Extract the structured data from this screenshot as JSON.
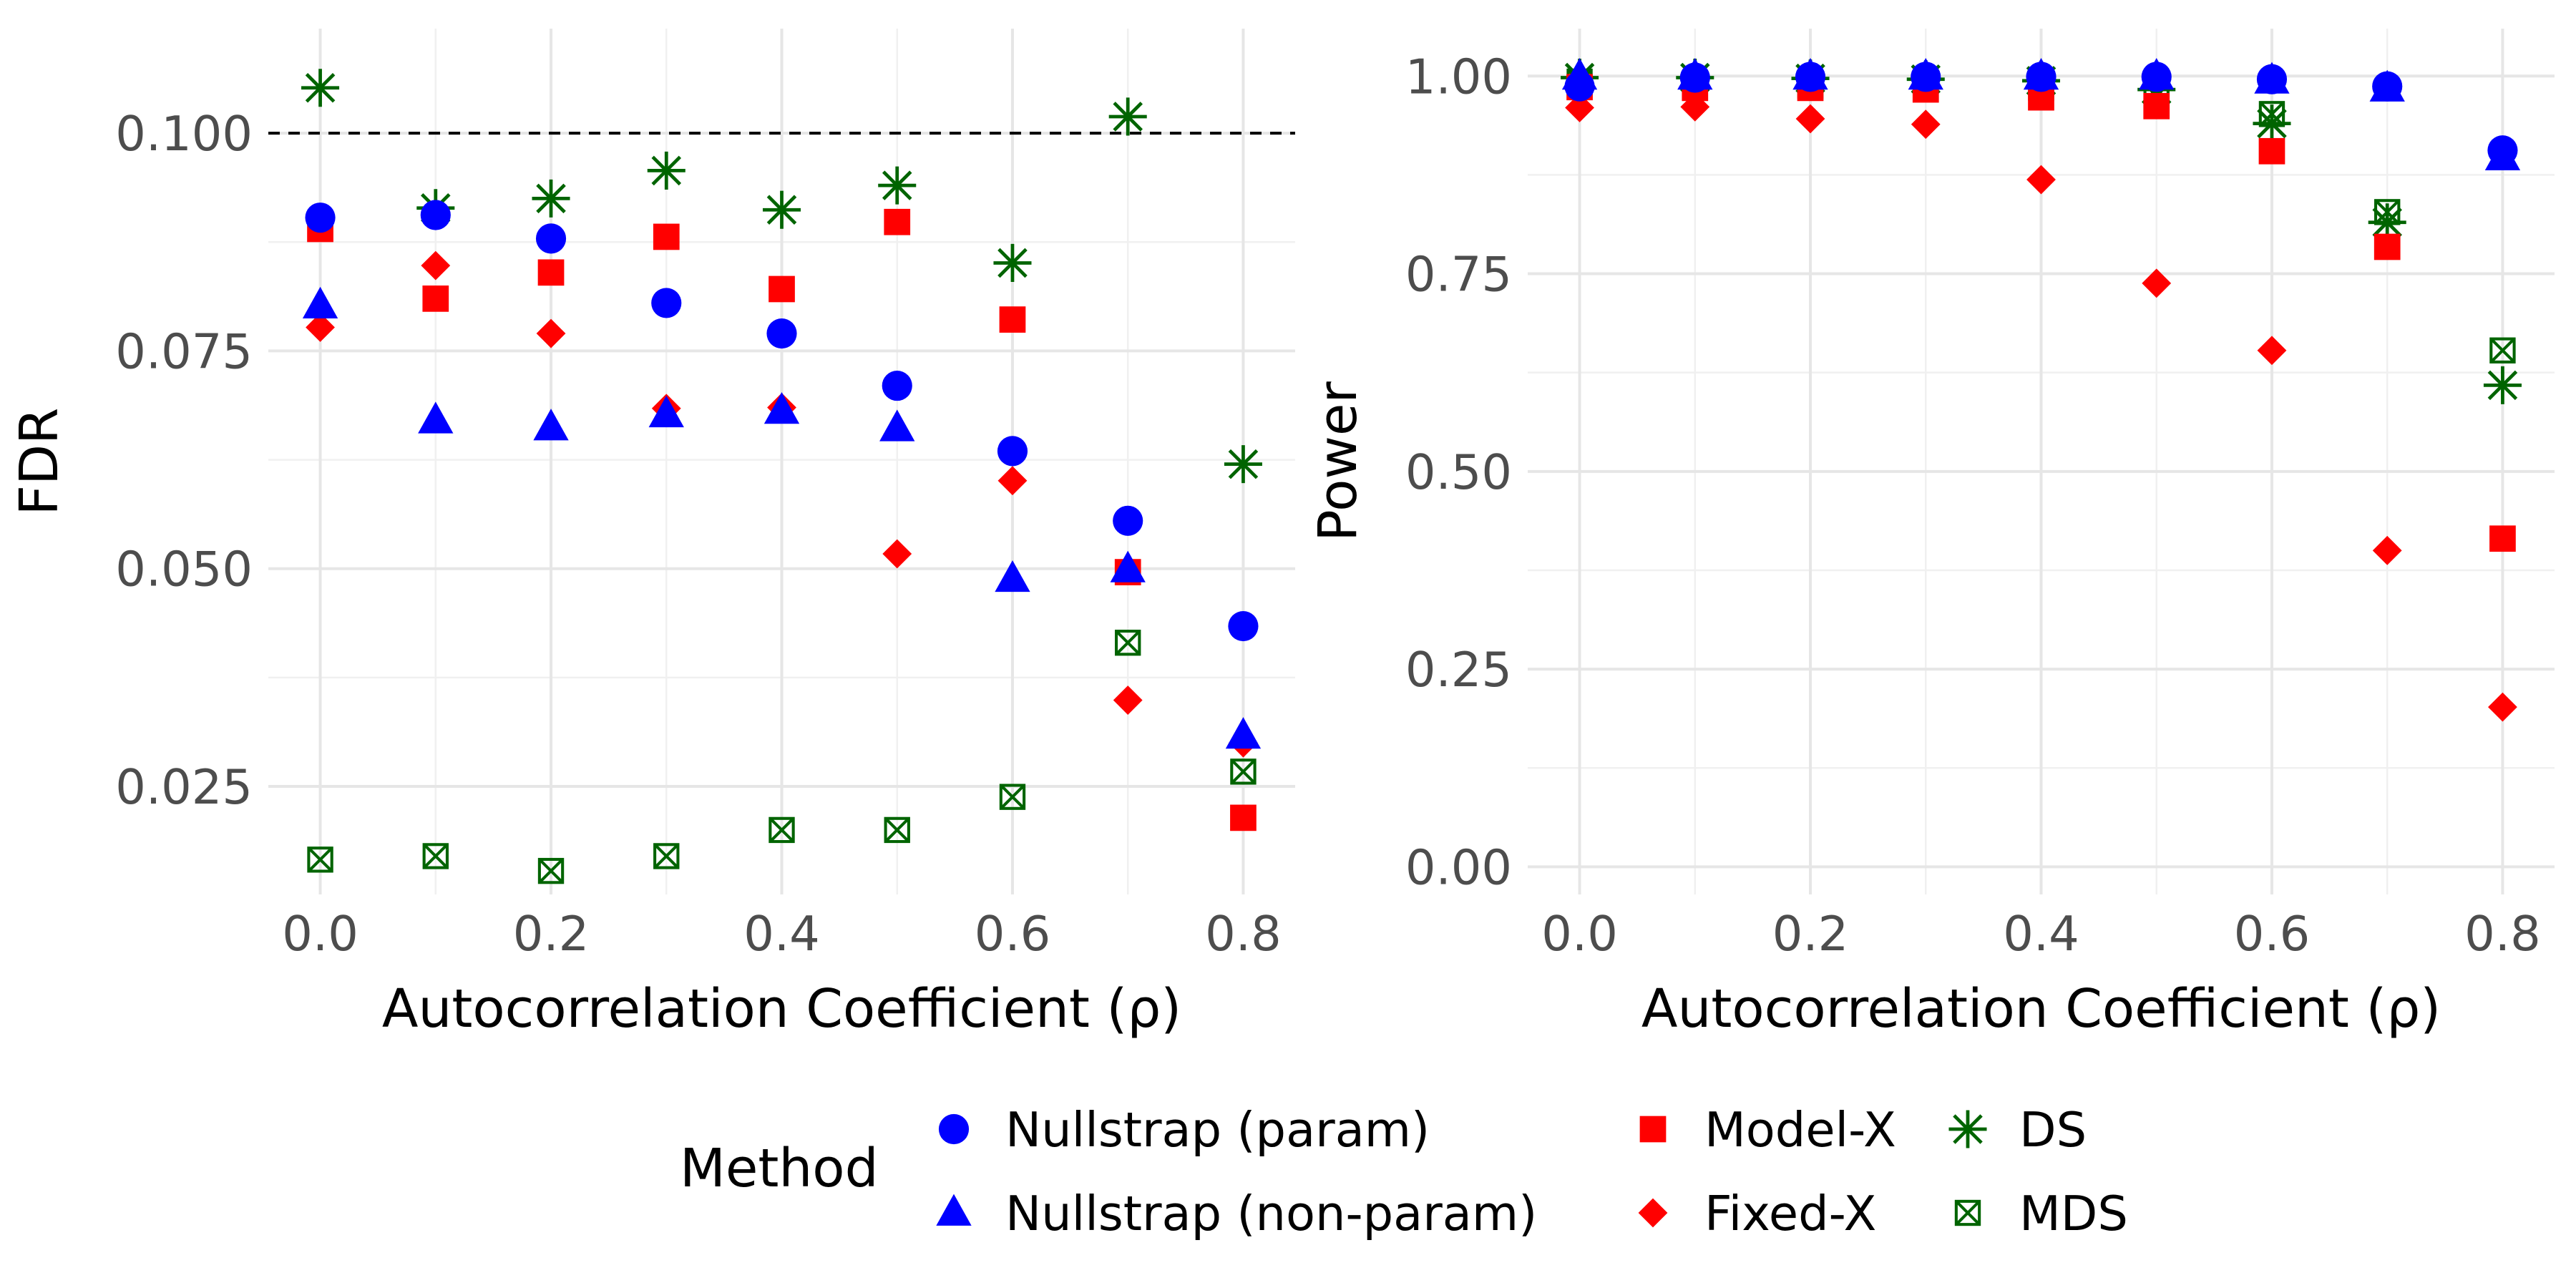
{
  "colors": {
    "nullstrap_param": "#0000ff",
    "nullstrap_nonparam": "#0000ff",
    "model_x": "#ff0000",
    "fixed_x": "#ff0000",
    "ds": "#006400",
    "mds": "#006400",
    "reference_line": "#000000"
  },
  "legend": {
    "title": "Method",
    "entries": [
      {
        "key": "nullstrap_param",
        "label": "Nullstrap (param)",
        "icon": "circle-icon"
      },
      {
        "key": "nullstrap_nonparam",
        "label": "Nullstrap (non-param)",
        "icon": "triangle-icon"
      },
      {
        "key": "model_x",
        "label": "Model-X",
        "icon": "square-icon"
      },
      {
        "key": "fixed_x",
        "label": "Fixed-X",
        "icon": "diamond-icon"
      },
      {
        "key": "ds",
        "label": "DS",
        "icon": "asterisk-icon"
      },
      {
        "key": "mds",
        "label": "MDS",
        "icon": "boxed-cross-icon"
      }
    ]
  },
  "chart_data": [
    {
      "type": "scatter",
      "id": "fdr",
      "xlabel": "Autocorrelation Coefficient (ρ)",
      "ylabel": "FDR",
      "xlim": [
        -0.045,
        0.845
      ],
      "ylim": [
        0.0126,
        0.112
      ],
      "xticks": [
        0.0,
        0.2,
        0.4,
        0.6,
        0.8
      ],
      "xtick_labels": [
        "0.0",
        "0.2",
        "0.4",
        "0.6",
        "0.8"
      ],
      "yticks": [
        0.025,
        0.05,
        0.075,
        0.1
      ],
      "ytick_labels": [
        "0.025",
        "0.050",
        "0.075",
        "0.100"
      ],
      "reference_line": {
        "y": 0.1,
        "style": "dashed"
      },
      "x": [
        0.0,
        0.1,
        0.2,
        0.3,
        0.4,
        0.5,
        0.6,
        0.7,
        0.8
      ],
      "series": [
        {
          "key": "nullstrap_param",
          "name": "Nullstrap (param)",
          "values": [
            0.0903,
            0.0906,
            0.0879,
            0.0805,
            0.077,
            0.071,
            0.0635,
            0.0555,
            0.0434
          ]
        },
        {
          "key": "nullstrap_nonparam",
          "name": "Nullstrap (non-param)",
          "values": [
            0.0802,
            0.067,
            0.0662,
            0.0677,
            0.0681,
            0.0661,
            0.0488,
            0.0499,
            0.0308
          ]
        },
        {
          "key": "model_x",
          "name": "Model-X",
          "values": [
            0.089,
            0.081,
            0.084,
            0.0881,
            0.0821,
            0.0898,
            0.0786,
            0.0496,
            0.0214
          ]
        },
        {
          "key": "fixed_x",
          "name": "Fixed-X",
          "values": [
            0.0777,
            0.0848,
            0.077,
            0.0684,
            0.0685,
            0.0517,
            0.0601,
            0.0349,
            0.03
          ]
        },
        {
          "key": "ds",
          "name": "DS",
          "values": [
            0.1052,
            0.0914,
            0.0925,
            0.0957,
            0.0912,
            0.094,
            0.0851,
            0.1019,
            0.062
          ]
        },
        {
          "key": "mds",
          "name": "MDS",
          "values": [
            0.0166,
            0.017,
            0.0153,
            0.017,
            0.02,
            0.02,
            0.0238,
            0.0415,
            0.0267
          ]
        }
      ]
    },
    {
      "type": "scatter",
      "id": "power",
      "xlabel": "Autocorrelation Coefficient (ρ)",
      "ylabel": "Power",
      "xlim": [
        -0.045,
        0.845
      ],
      "ylim": [
        -0.035,
        1.06
      ],
      "xticks": [
        0.0,
        0.2,
        0.4,
        0.6,
        0.8
      ],
      "xtick_labels": [
        "0.0",
        "0.2",
        "0.4",
        "0.6",
        "0.8"
      ],
      "yticks": [
        0.0,
        0.25,
        0.5,
        0.75,
        1.0
      ],
      "ytick_labels": [
        "0.00",
        "0.25",
        "0.50",
        "0.75",
        "1.00"
      ],
      "x": [
        0.0,
        0.1,
        0.2,
        0.3,
        0.4,
        0.5,
        0.6,
        0.7,
        0.8
      ],
      "series": [
        {
          "key": "nullstrap_param",
          "name": "Nullstrap (param)",
          "values": [
            0.987,
            0.998,
            0.999,
            0.999,
            0.999,
            0.999,
            0.996,
            0.987,
            0.906
          ]
        },
        {
          "key": "nullstrap_nonparam",
          "name": "Nullstrap (non-param)",
          "values": [
            0.999,
            0.999,
            0.999,
            0.999,
            0.999,
            0.999,
            0.994,
            0.984,
            0.897
          ]
        },
        {
          "key": "model_x",
          "name": "Model-X",
          "values": [
            0.986,
            0.985,
            0.985,
            0.983,
            0.973,
            0.962,
            0.905,
            0.784,
            0.415
          ]
        },
        {
          "key": "fixed_x",
          "name": "Fixed-X",
          "values": [
            0.96,
            0.961,
            0.946,
            0.939,
            0.869,
            0.738,
            0.653,
            0.4,
            0.202
          ]
        },
        {
          "key": "ds",
          "name": "DS",
          "values": [
            0.998,
            0.998,
            0.997,
            0.996,
            0.994,
            0.983,
            0.94,
            0.815,
            0.609
          ]
        },
        {
          "key": "mds",
          "name": "MDS",
          "values": [
            0.993,
            0.991,
            0.988,
            0.988,
            0.985,
            0.975,
            0.952,
            0.828,
            0.653
          ]
        }
      ]
    }
  ]
}
